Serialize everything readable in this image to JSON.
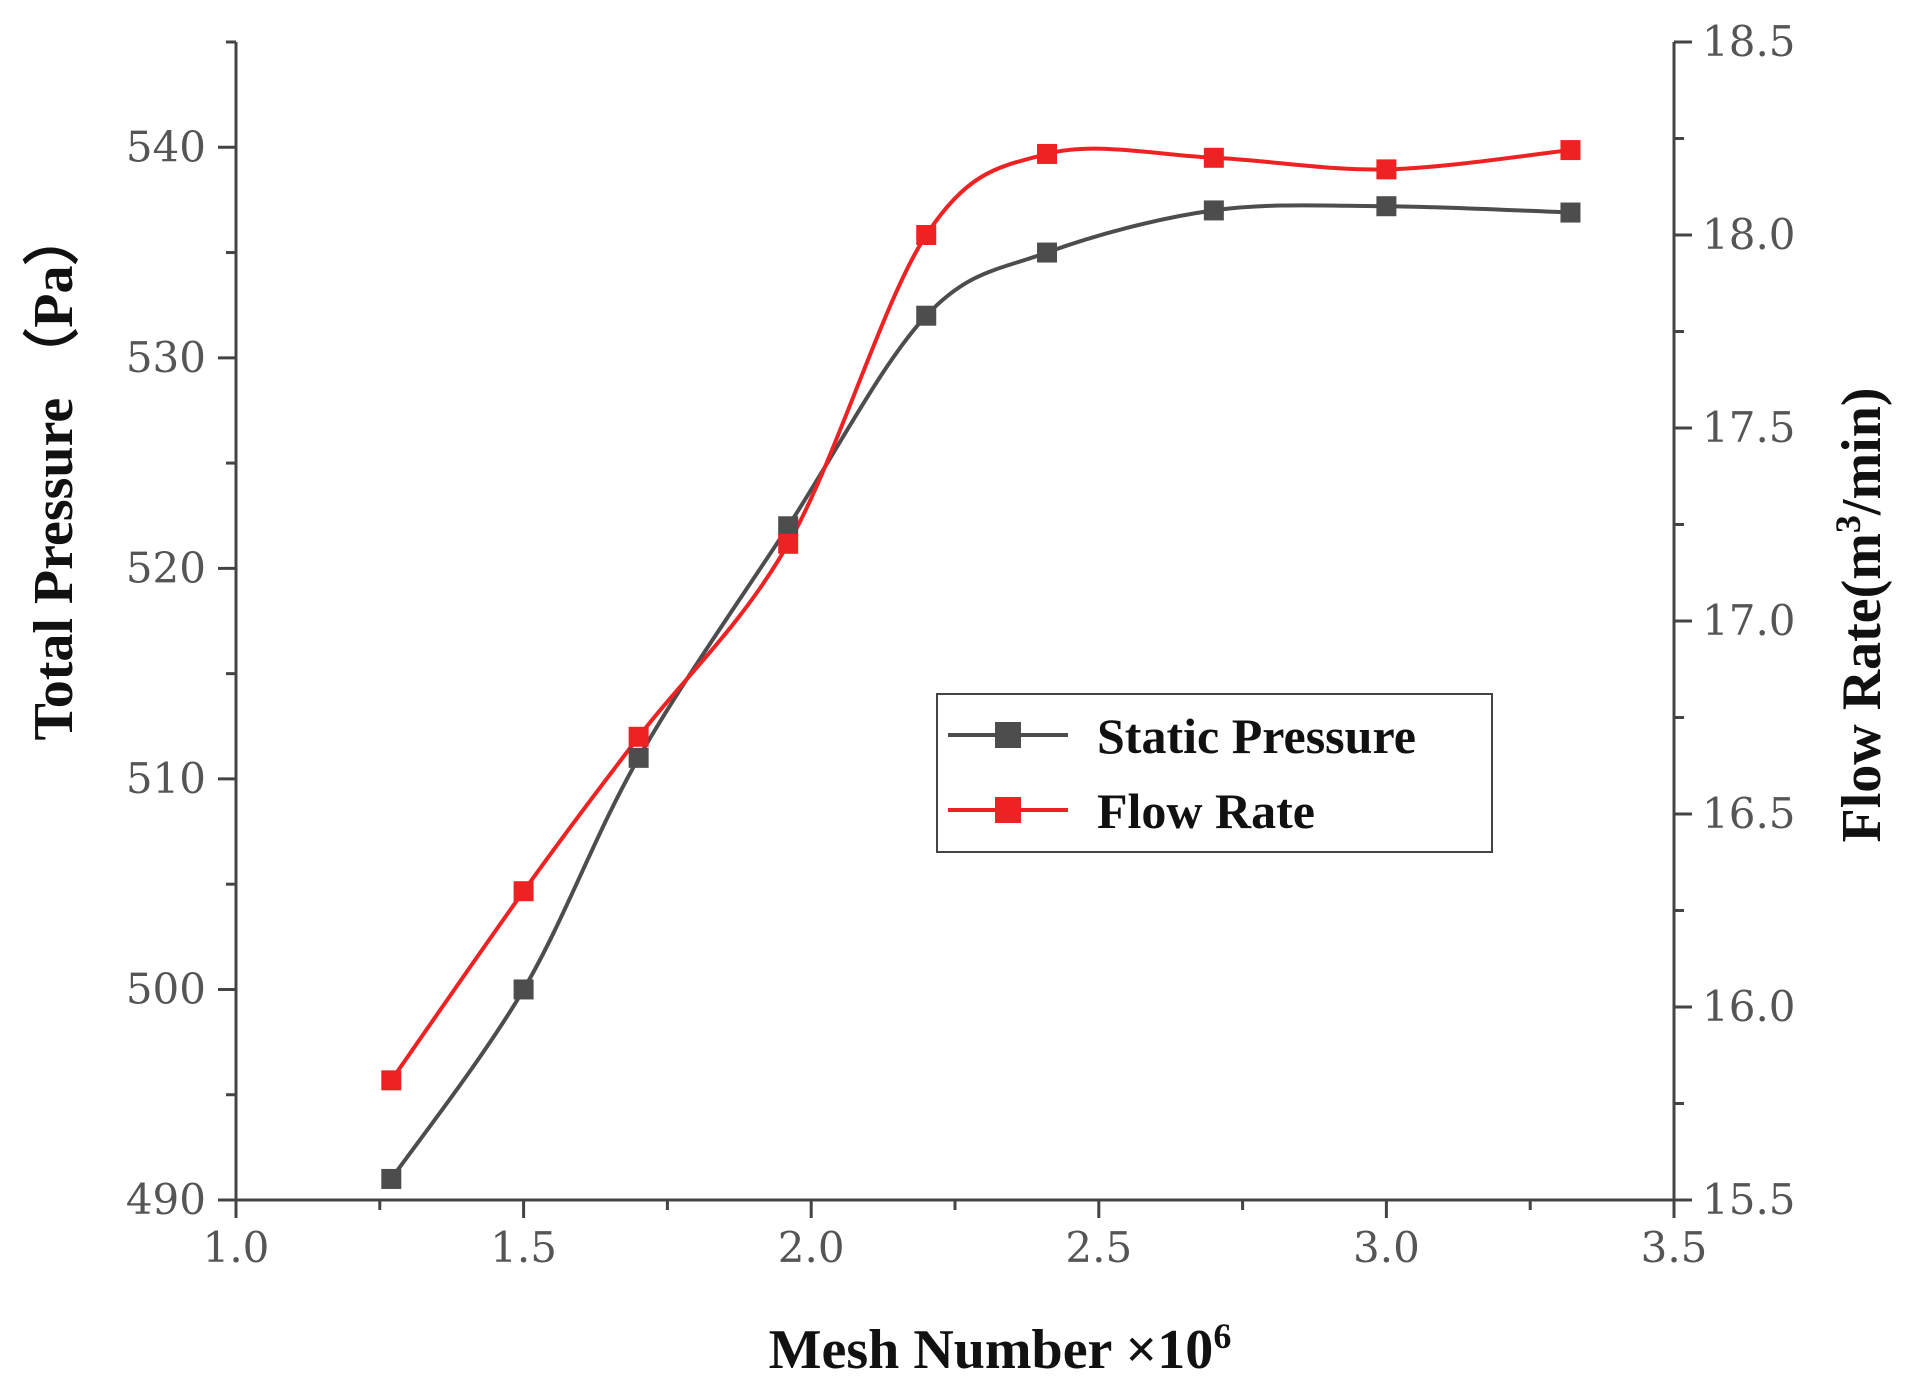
{
  "chart_data": {
    "type": "line",
    "title": "",
    "xlabel": "Mesh Number ×10",
    "xlabel_sup": "6",
    "ylabel_left": "Total Pressure （Pa）",
    "ylabel_right_pre": "Flow Rate(m",
    "ylabel_right_sup": "3",
    "ylabel_right_post": "/min)",
    "xlim": [
      1.0,
      3.5
    ],
    "ylim_left": [
      490,
      545
    ],
    "ylim_right": [
      15.5,
      18.5
    ],
    "x_ticks": [
      "1.0",
      "1.5",
      "2.0",
      "2.5",
      "3.0",
      "3.5"
    ],
    "y_left_ticks": [
      "490",
      "500",
      "510",
      "520",
      "530",
      "540"
    ],
    "y_right_ticks": [
      "15.5",
      "16.0",
      "16.5",
      "17.0",
      "17.5",
      "18.0",
      "18.5"
    ],
    "grid": false,
    "legend_position": "center-right",
    "series": [
      {
        "name": "Static Pressure",
        "axis": "left",
        "color": "#4d4d4d",
        "x": [
          1.27,
          1.5,
          1.7,
          1.96,
          2.2,
          2.41,
          2.7,
          3.0,
          3.32
        ],
        "values": [
          491,
          500,
          511,
          522,
          532,
          535,
          537,
          537.2,
          536.9
        ]
      },
      {
        "name": "Flow Rate",
        "axis": "right",
        "color": "#ee2222",
        "x": [
          1.27,
          1.5,
          1.7,
          1.96,
          2.2,
          2.41,
          2.7,
          3.0,
          3.32
        ],
        "values": [
          15.81,
          16.3,
          16.7,
          17.2,
          18.0,
          18.21,
          18.2,
          18.17,
          18.22
        ]
      }
    ]
  }
}
